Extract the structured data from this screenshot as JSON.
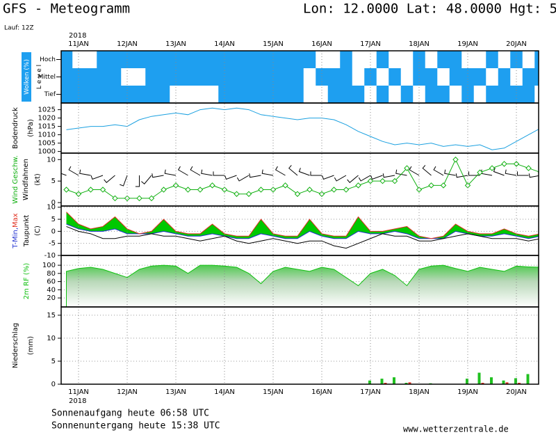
{
  "header": {
    "title": "GFS - Meteogramm",
    "location": "Lon: 12.0000 Lat: 48.0000 Hgt: 5",
    "run": "Lauf: 12Z"
  },
  "footer": {
    "sunrise": "Sonnenaufgang heute 06:58 UTC",
    "sunset": "Sonnenuntergang heute 15:38 UTC",
    "source": "www.wetterzentrale.de"
  },
  "time_axis": {
    "year": "2018",
    "categories": [
      null,
      "11JAN",
      null,
      null,
      null,
      "12JAN",
      null,
      null,
      null,
      "13JAN",
      null,
      null,
      null,
      "14JAN",
      null,
      null,
      null,
      "15JAN",
      null,
      null,
      null,
      "16JAN",
      null,
      null,
      null,
      "17JAN",
      null,
      null,
      null,
      "18JAN",
      null,
      null,
      null,
      "19JAN",
      null,
      null,
      null,
      "20JAN",
      null,
      null
    ]
  },
  "chart_data": [
    {
      "type": "heatmap",
      "ylabel": "Wolken (%)",
      "ylabel2": "L e v e l",
      "series": [
        {
          "name": "Hoch",
          "color": "#1e9ff0",
          "values": [
            100,
            0,
            0,
            100,
            100,
            100,
            100,
            100,
            100,
            100,
            100,
            100,
            100,
            100,
            100,
            100,
            100,
            100,
            100,
            100,
            100,
            0,
            0,
            100,
            0,
            0,
            100,
            0,
            0,
            100,
            0,
            100,
            100,
            0,
            0,
            100,
            0,
            100,
            0,
            100
          ]
        },
        {
          "name": "Mittel",
          "color": "#1e9ff0",
          "values": [
            100,
            100,
            100,
            100,
            100,
            0,
            0,
            100,
            100,
            100,
            100,
            100,
            100,
            100,
            100,
            100,
            100,
            100,
            100,
            100,
            0,
            100,
            100,
            100,
            0,
            100,
            0,
            100,
            0,
            100,
            100,
            0,
            100,
            100,
            100,
            0,
            100,
            0,
            100,
            100
          ]
        },
        {
          "name": "Tief",
          "color": "#1e9ff0",
          "values": [
            100,
            100,
            100,
            100,
            100,
            100,
            100,
            100,
            100,
            0,
            0,
            0,
            0,
            100,
            100,
            100,
            100,
            100,
            100,
            100,
            0,
            0,
            100,
            100,
            100,
            0,
            100,
            0,
            100,
            0,
            100,
            100,
            0,
            100,
            0,
            100,
            100,
            100,
            100,
            0
          ]
        }
      ]
    },
    {
      "type": "line",
      "ylabel": "Bodendruck",
      "yunit": "(hPa)",
      "ylim": [
        999,
        1029
      ],
      "yticks": [
        1000,
        1005,
        1010,
        1015,
        1020,
        1025
      ],
      "grid": false,
      "series": [
        {
          "color": "#1aa0e0",
          "values": [
            1013,
            1014,
            1015,
            1015,
            1016,
            1015,
            1019,
            1021,
            1022,
            1023,
            1022,
            1025,
            1026,
            1025,
            1026,
            1025,
            1022,
            1021,
            1020,
            1019,
            1020,
            1020,
            1019,
            1016,
            1012,
            1009,
            1006,
            1004,
            1005,
            1004,
            1005,
            1003,
            1004,
            1003,
            1004,
            1001,
            1002,
            1006,
            1010,
            1014
          ]
        }
      ]
    },
    {
      "type": "wind",
      "ylabel2": "Windfahnen",
      "yunit": "(kt)",
      "ylim": [
        -0.8,
        11.5
      ],
      "yticks": [
        0,
        5,
        10
      ],
      "grid": false,
      "series": [
        {
          "name": "Wind Geschw.",
          "color": "#10b010",
          "values": [
            3,
            2,
            3,
            3,
            1,
            1,
            1,
            1,
            3,
            4,
            3,
            3,
            4,
            3,
            2,
            2,
            3,
            3,
            4,
            2,
            3,
            2,
            3,
            3,
            4,
            5,
            5,
            5,
            8,
            3,
            4,
            4,
            10,
            4,
            7,
            8,
            9,
            9,
            8,
            7
          ]
        }
      ],
      "directions": [
        290,
        300,
        280,
        250,
        230,
        200,
        180,
        220,
        260,
        280,
        300,
        300,
        280,
        270,
        250,
        240,
        260,
        280,
        300,
        310,
        290,
        270,
        250,
        240,
        230,
        240,
        250,
        260,
        280,
        300,
        310,
        300,
        280,
        260,
        270,
        280,
        290,
        280,
        270,
        260
      ]
    },
    {
      "type": "temperature",
      "yunit": "(C)",
      "label_separator": ",",
      "ylim": [
        -10,
        10.5
      ],
      "yticks": [
        -10,
        -5,
        0,
        5,
        10
      ],
      "grid": true,
      "band_color": "#00c800",
      "series": [
        {
          "name": "T-Min",
          "color": "#2030d0",
          "values": [
            3,
            1,
            0,
            0,
            1,
            -1,
            -1,
            -1,
            0,
            -1,
            -2,
            -2,
            -1,
            -2,
            -3,
            -3,
            -1,
            -2,
            -3,
            -3,
            0,
            -2,
            -3,
            -3,
            0,
            -1,
            -1,
            0,
            -1,
            -3,
            -3,
            -3,
            0,
            -1,
            -2,
            -2,
            -1,
            -2,
            -3,
            -2
          ]
        },
        {
          "name": "Max",
          "color": "#e03020",
          "values": [
            8,
            3,
            1,
            2,
            6,
            1,
            -1,
            0,
            5,
            0,
            -1,
            -1,
            3,
            -1,
            -2,
            -2,
            5,
            -1,
            -2,
            -2,
            5,
            -1,
            -2,
            -2,
            6,
            0,
            0,
            1,
            2,
            -2,
            -3,
            -2,
            3,
            0,
            -1,
            -1,
            1,
            -1,
            -2,
            -1
          ]
        },
        {
          "name": "Taupunkt",
          "color": "#000000",
          "values": [
            2,
            0,
            -1,
            -3,
            -3,
            -2,
            -2,
            -1,
            -2,
            -2,
            -3,
            -4,
            -3,
            -2,
            -4,
            -5,
            -4,
            -3,
            -4,
            -5,
            -4,
            -4,
            -6,
            -7,
            -5,
            -3,
            -1,
            -2,
            -2,
            -4,
            -4,
            -3,
            -2,
            -1,
            -2,
            -3,
            -3,
            -3,
            -4,
            -3
          ]
        }
      ]
    },
    {
      "type": "area",
      "ylabel": "2m RF (%)",
      "ylim": [
        -2,
        124
      ],
      "yticks": [
        20,
        40,
        60,
        80,
        100
      ],
      "grid": true,
      "series": [
        {
          "color": "#10c010",
          "values": [
            85,
            92,
            95,
            90,
            80,
            70,
            90,
            98,
            100,
            98,
            80,
            100,
            100,
            98,
            95,
            80,
            55,
            85,
            95,
            90,
            85,
            95,
            90,
            70,
            50,
            80,
            90,
            75,
            50,
            90,
            98,
            100,
            92,
            85,
            95,
            90,
            85,
            98,
            96,
            95
          ]
        }
      ]
    },
    {
      "type": "bar",
      "ylabel": "Niederschlag",
      "yunit": "(mm)",
      "ylim": [
        0,
        16.8
      ],
      "yticks": [
        0,
        5,
        10,
        15
      ],
      "grid": true,
      "series": [
        {
          "color": "#20c020",
          "values": [
            0,
            0,
            0,
            0,
            0,
            0,
            0,
            0,
            0,
            0,
            0,
            0,
            0,
            0,
            0,
            0,
            0,
            0,
            0,
            0,
            0,
            0,
            0,
            0,
            0,
            0.8,
            1.2,
            1.5,
            0.3,
            0,
            0.2,
            0,
            0,
            1.2,
            2.5,
            1.5,
            0.8,
            1.3,
            2.2,
            1.2
          ]
        },
        {
          "color": "#e03020",
          "values": [
            0,
            0,
            0,
            0,
            0,
            0,
            0,
            0,
            0,
            0,
            0,
            0,
            0,
            0,
            0,
            0,
            0,
            0,
            0,
            0,
            0,
            0,
            0,
            0,
            0,
            0,
            0.3,
            0,
            0.4,
            0,
            0,
            0,
            0,
            0,
            0.3,
            0,
            0.4,
            0.3,
            0,
            0.3
          ]
        }
      ]
    }
  ]
}
